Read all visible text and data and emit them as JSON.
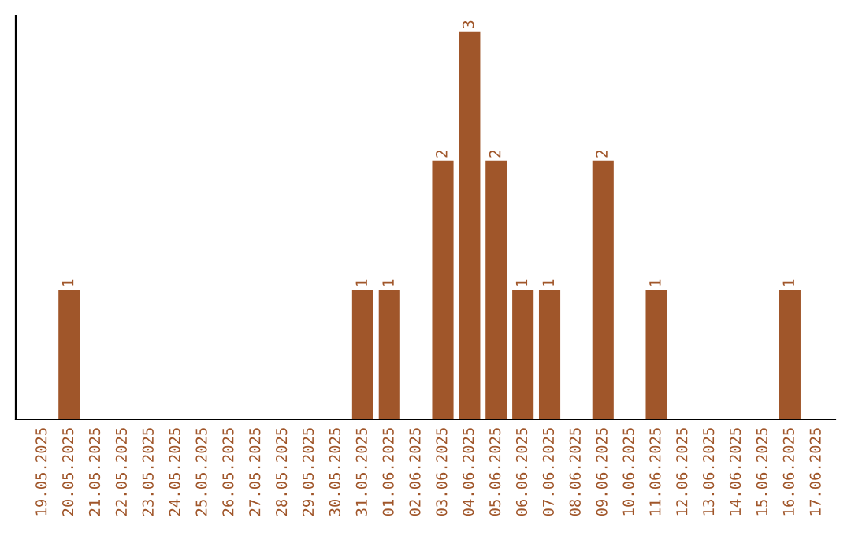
{
  "chart_data": {
    "type": "bar",
    "categories": [
      "19.05.2025",
      "20.05.2025",
      "21.05.2025",
      "22.05.2025",
      "23.05.2025",
      "24.05.2025",
      "25.05.2025",
      "26.05.2025",
      "27.05.2025",
      "28.05.2025",
      "29.05.2025",
      "30.05.2025",
      "31.05.2025",
      "01.06.2025",
      "02.06.2025",
      "03.06.2025",
      "04.06.2025",
      "05.06.2025",
      "06.06.2025",
      "07.06.2025",
      "08.06.2025",
      "09.06.2025",
      "10.06.2025",
      "11.06.2025",
      "12.06.2025",
      "13.06.2025",
      "14.06.2025",
      "15.06.2025",
      "16.06.2025",
      "17.06.2025"
    ],
    "values": [
      0,
      1,
      0,
      0,
      0,
      0,
      0,
      0,
      0,
      0,
      0,
      0,
      1,
      1,
      0,
      2,
      3,
      2,
      1,
      1,
      0,
      2,
      0,
      1,
      0,
      0,
      0,
      0,
      1,
      0
    ],
    "value_labels": [
      null,
      "1",
      null,
      null,
      null,
      null,
      null,
      null,
      null,
      null,
      null,
      null,
      "1",
      "1",
      null,
      "2",
      "3",
      "2",
      "1",
      "1",
      null,
      "2",
      null,
      "1",
      null,
      null,
      null,
      null,
      "1",
      null
    ],
    "color": "#a0562a",
    "tick_labels": "x",
    "grid": false,
    "legend": false
  }
}
